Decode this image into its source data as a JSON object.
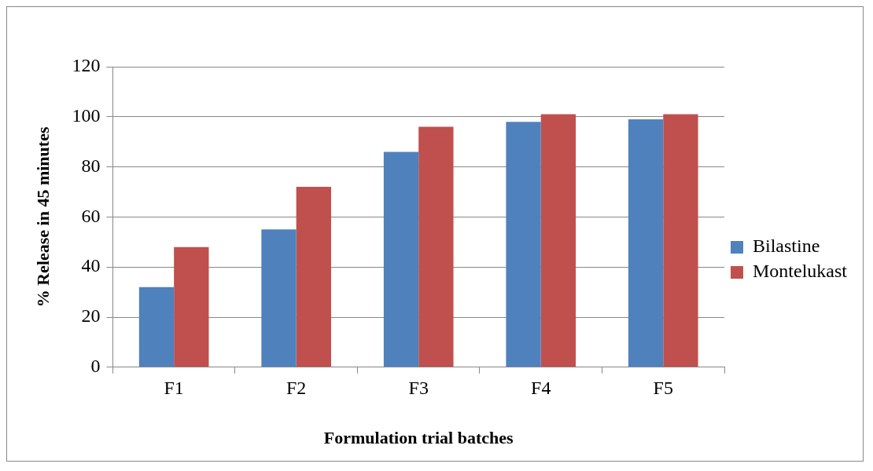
{
  "chart_data": {
    "type": "bar",
    "xlabel": "Formulation trial batches",
    "ylabel": "% Release in 45 minutes",
    "categories": [
      "F1",
      "F2",
      "F3",
      "F4",
      "F5"
    ],
    "series": [
      {
        "name": "Bilastine",
        "color": "#4f81bd",
        "values": [
          32,
          55,
          86,
          98,
          99
        ]
      },
      {
        "name": "Montelukast",
        "color": "#c0504d",
        "values": [
          48,
          72,
          96,
          101,
          101
        ]
      }
    ],
    "ylim": [
      0,
      120
    ],
    "yticks": [
      0,
      20,
      40,
      60,
      80,
      100,
      120
    ],
    "grid": "y",
    "legend": "right"
  }
}
